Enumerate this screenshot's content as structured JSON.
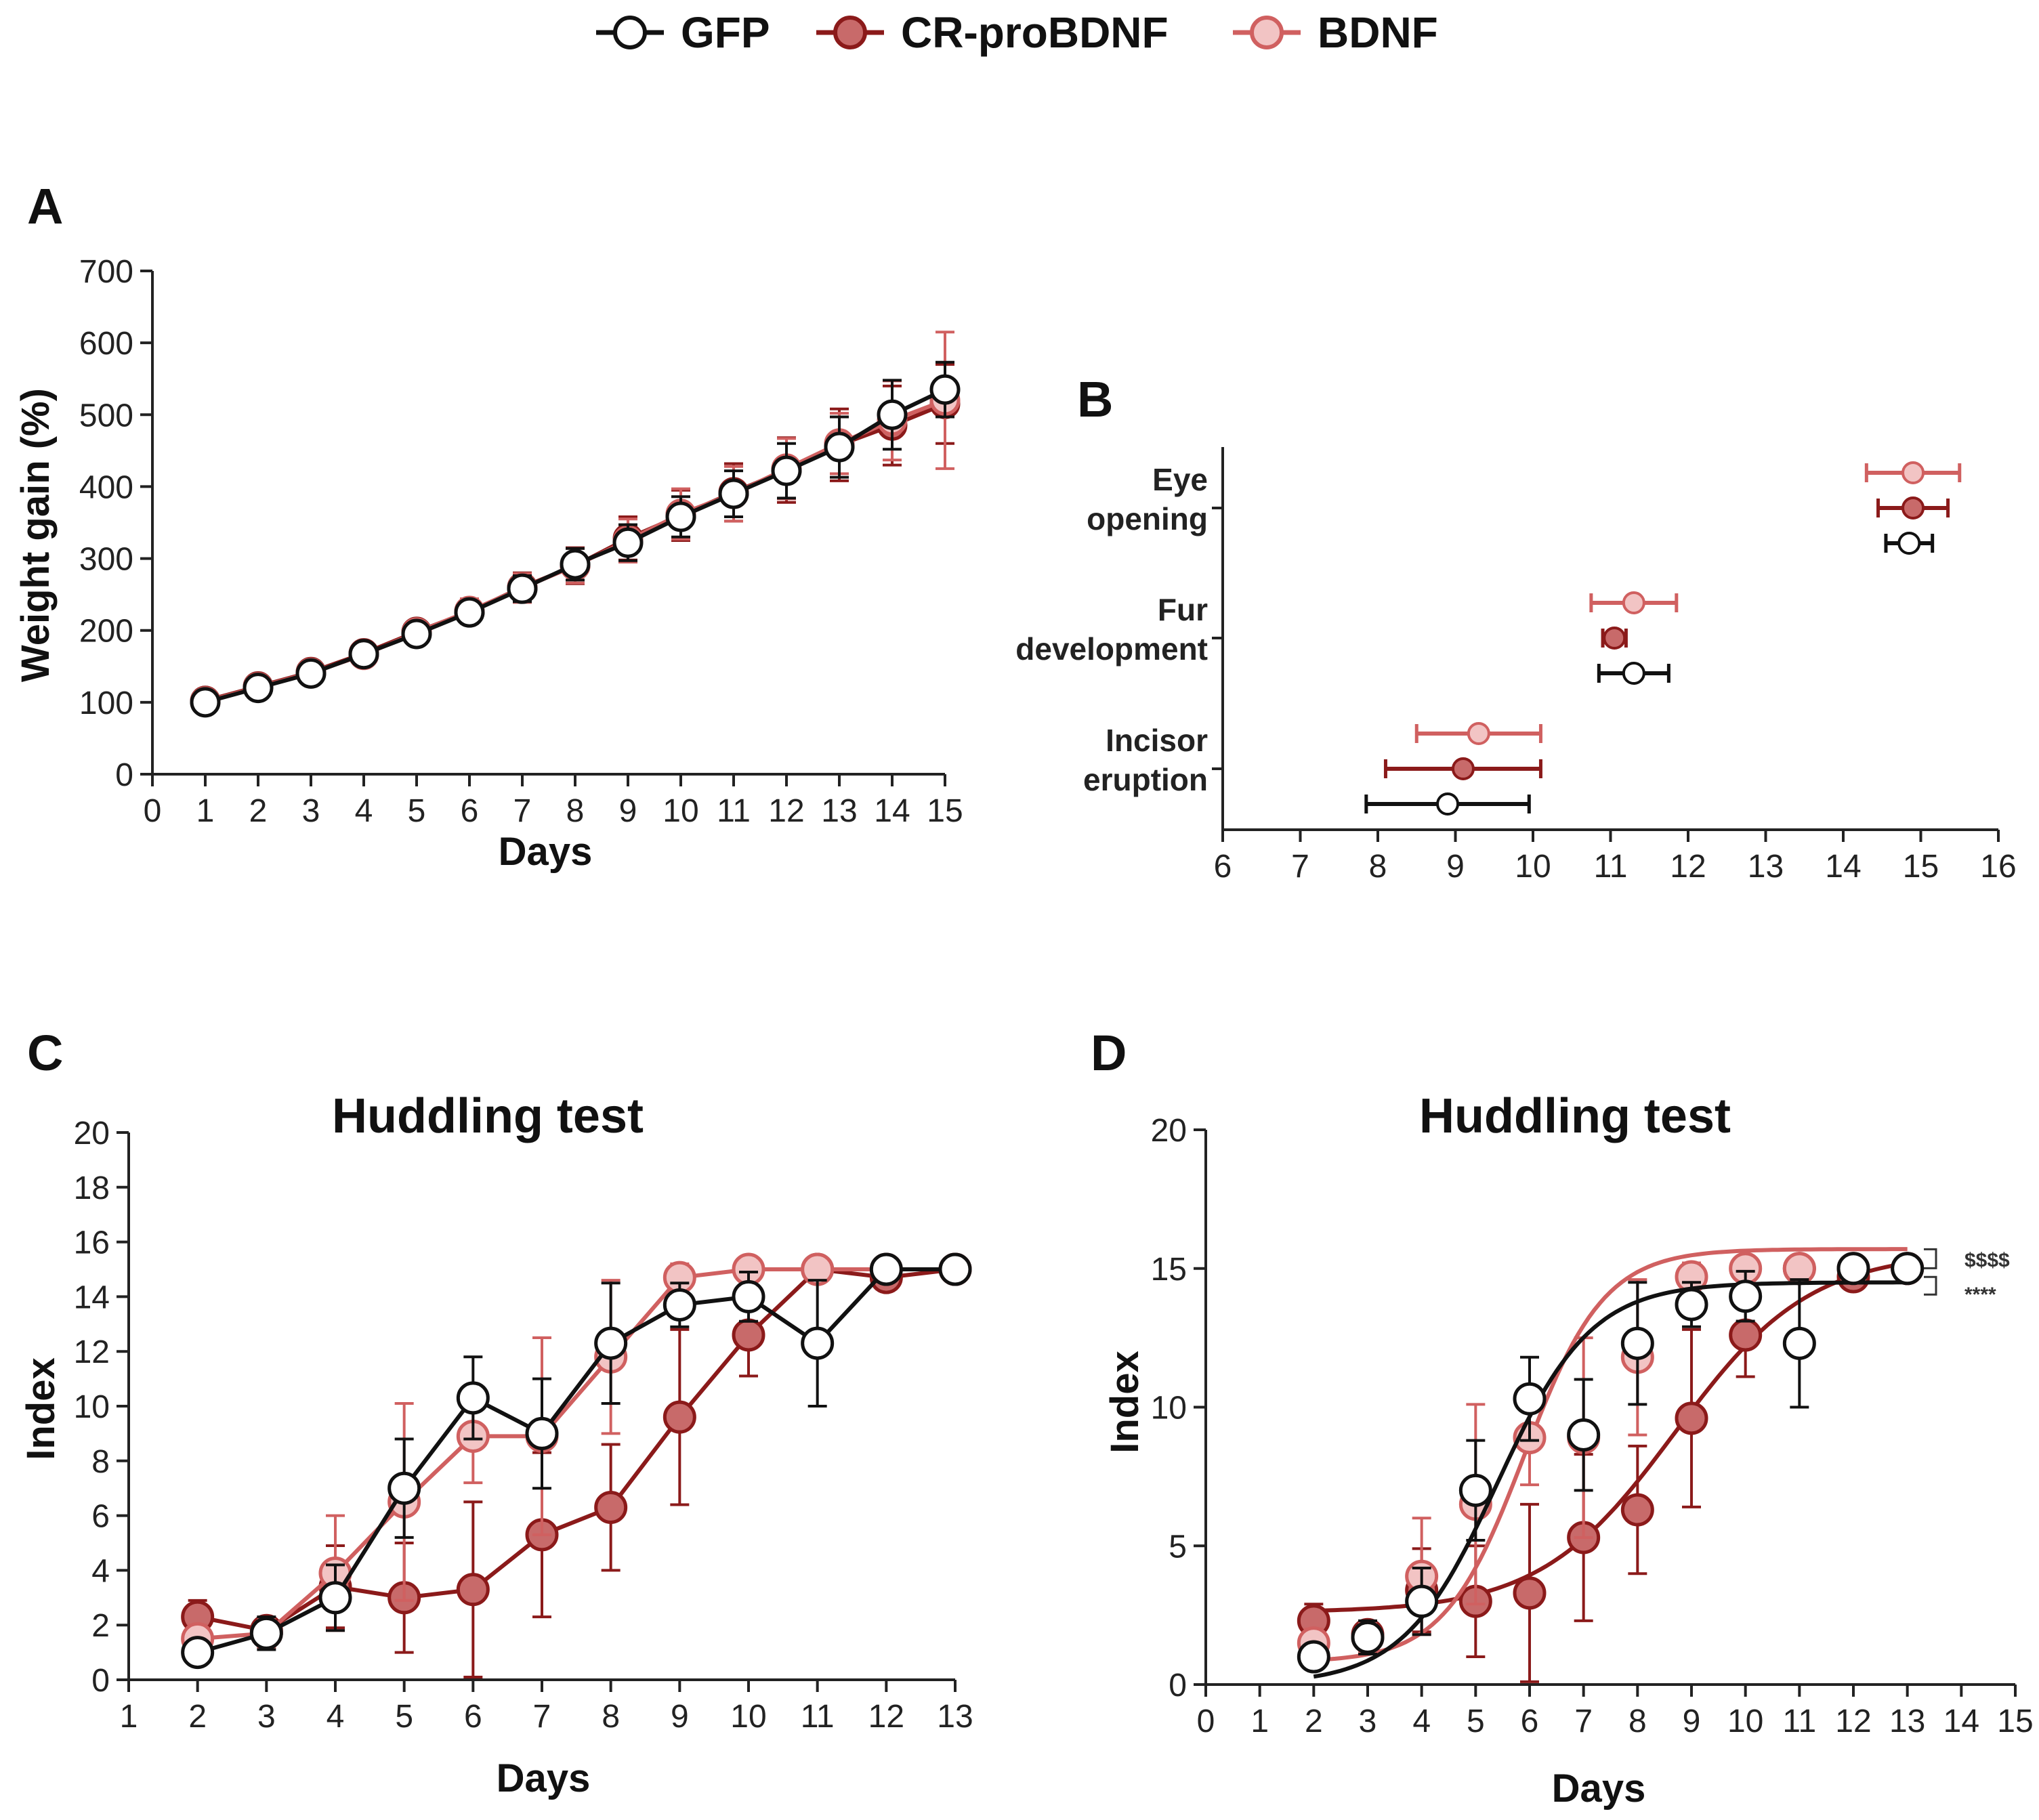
{
  "colors": {
    "GFP": "#111111",
    "CR-proBDNF": "#8b1a1a",
    "BDNF": "#d06060",
    "GFP_fill": "#ffffff",
    "CR-proBDNF_fill": "#c86a6a",
    "BDNF_fill": "#f2c4c4"
  },
  "legend": {
    "items": [
      "GFP",
      "CR-proBDNF",
      "BDNF"
    ]
  },
  "chart_data": [
    {
      "panel": "A",
      "type": "line",
      "title": "",
      "xlabel": "Days",
      "ylabel": "Weight gain (%)",
      "xlim": [
        0,
        15
      ],
      "ylim": [
        0,
        700
      ],
      "xticks": [
        0,
        1,
        2,
        3,
        4,
        5,
        6,
        7,
        8,
        9,
        10,
        11,
        12,
        13,
        14,
        15
      ],
      "yticks": [
        0,
        100,
        200,
        300,
        400,
        500,
        600,
        700
      ],
      "x": [
        1,
        2,
        3,
        4,
        5,
        6,
        7,
        8,
        9,
        10,
        11,
        12,
        13,
        14,
        15
      ],
      "series": [
        {
          "name": "GFP",
          "values": [
            100,
            120,
            140,
            167,
            195,
            225,
            258,
            292,
            322,
            358,
            390,
            422,
            455,
            500,
            535
          ],
          "err": [
            4,
            5,
            7,
            8,
            12,
            15,
            18,
            22,
            25,
            28,
            32,
            38,
            42,
            48,
            38
          ]
        },
        {
          "name": "CR-proBDNF",
          "values": [
            102,
            122,
            142,
            168,
            198,
            226,
            260,
            290,
            328,
            360,
            392,
            423,
            458,
            485,
            515
          ],
          "err": [
            4,
            5,
            8,
            9,
            13,
            16,
            20,
            25,
            30,
            35,
            40,
            45,
            50,
            55,
            55
          ]
        },
        {
          "name": "BDNF",
          "values": [
            101,
            121,
            141,
            166,
            197,
            227,
            259,
            290,
            325,
            362,
            390,
            425,
            460,
            492,
            520
          ],
          "err": [
            4,
            5,
            8,
            9,
            14,
            17,
            20,
            24,
            30,
            35,
            38,
            42,
            42,
            55,
            95
          ]
        }
      ]
    },
    {
      "panel": "B",
      "type": "scatter",
      "title": "",
      "xlabel": "",
      "ylabel": "",
      "xlim": [
        6,
        16
      ],
      "xticks": [
        6,
        7,
        8,
        9,
        10,
        11,
        12,
        13,
        14,
        15,
        16
      ],
      "categories": [
        "Eye opening",
        "Fur development",
        "Incisor eruption"
      ],
      "category_lines": [
        [
          "Eye",
          "opening"
        ],
        [
          "Fur",
          "development"
        ],
        [
          "Incisor",
          "eruption"
        ]
      ],
      "series": [
        {
          "name": "BDNF",
          "values": [
            14.9,
            11.3,
            9.3
          ],
          "err": [
            0.6,
            0.55,
            0.8
          ]
        },
        {
          "name": "CR-proBDNF",
          "values": [
            14.9,
            11.05,
            9.1
          ],
          "err": [
            0.45,
            0.15,
            1.0
          ]
        },
        {
          "name": "GFP",
          "values": [
            14.85,
            11.3,
            8.9
          ],
          "err": [
            0.3,
            0.45,
            1.05
          ]
        }
      ]
    },
    {
      "panel": "C",
      "type": "line",
      "title": "Huddling test",
      "xlabel": "Days",
      "ylabel": "Index",
      "xlim": [
        1,
        13
      ],
      "ylim": [
        0,
        20
      ],
      "xticks": [
        1,
        2,
        3,
        4,
        5,
        6,
        7,
        8,
        9,
        10,
        11,
        12,
        13
      ],
      "yticks": [
        0,
        2,
        4,
        6,
        8,
        10,
        12,
        14,
        16,
        18,
        20
      ],
      "x": [
        2,
        3,
        4,
        5,
        6,
        7,
        8,
        9,
        10,
        11,
        12,
        13
      ],
      "series": [
        {
          "name": "GFP",
          "values": [
            1.0,
            1.7,
            3.0,
            7.0,
            10.3,
            9.0,
            12.3,
            13.7,
            14.0,
            12.3,
            15.0,
            15.0
          ],
          "err": [
            0.3,
            0.6,
            1.2,
            1.8,
            1.5,
            2.0,
            2.2,
            0.8,
            0.9,
            2.3,
            0.3,
            0.2
          ]
        },
        {
          "name": "CR-proBDNF",
          "values": [
            2.3,
            1.8,
            3.4,
            3.0,
            3.3,
            5.3,
            6.3,
            9.6,
            12.6,
            15.0,
            14.7,
            15.0
          ],
          "err": [
            0.6,
            0.4,
            1.5,
            2.0,
            3.2,
            3.0,
            2.3,
            3.2,
            1.5,
            0.2,
            0.4,
            0.2
          ]
        },
        {
          "name": "BDNF",
          "values": [
            1.5,
            1.7,
            3.9,
            6.5,
            8.9,
            8.9,
            11.8,
            14.7,
            15.0,
            15.0,
            15.0,
            15.0
          ],
          "err": [
            0.5,
            0.5,
            2.1,
            3.6,
            1.7,
            3.6,
            2.8,
            0.5,
            0.2,
            0.2,
            0.2,
            0.2
          ]
        }
      ]
    },
    {
      "panel": "D",
      "type": "scatter",
      "title": "Huddling test",
      "xlabel": "Days",
      "ylabel": "Index",
      "xlim": [
        0,
        15
      ],
      "ylim": [
        0,
        20
      ],
      "xticks": [
        0,
        1,
        2,
        3,
        4,
        5,
        6,
        7,
        8,
        9,
        10,
        11,
        12,
        13,
        14,
        15
      ],
      "yticks": [
        0,
        5,
        10,
        15,
        20
      ],
      "x": [
        2,
        3,
        4,
        5,
        6,
        7,
        8,
        9,
        10,
        11,
        12,
        13
      ],
      "series": [
        {
          "name": "GFP",
          "values": [
            1.0,
            1.7,
            3.0,
            7.0,
            10.3,
            9.0,
            12.3,
            13.7,
            14.0,
            12.3,
            15.0,
            15.0
          ],
          "err": [
            0.3,
            0.6,
            1.2,
            1.8,
            1.5,
            2.0,
            2.2,
            0.8,
            0.9,
            2.3,
            0.3,
            0.2
          ],
          "fit": {
            "bottom": 0.0,
            "top": 14.5,
            "x50": 5.4,
            "slope": 1.15
          }
        },
        {
          "name": "CR-proBDNF",
          "values": [
            2.3,
            1.8,
            3.4,
            3.0,
            3.3,
            5.3,
            6.3,
            9.6,
            12.6,
            15.0,
            14.7,
            15.0
          ],
          "err": [
            0.6,
            0.4,
            1.5,
            2.0,
            3.2,
            3.0,
            2.3,
            3.2,
            1.5,
            0.2,
            0.4,
            0.2
          ],
          "fit": {
            "bottom": 2.6,
            "top": 15.6,
            "x50": 8.7,
            "slope": 0.8
          }
        },
        {
          "name": "BDNF",
          "values": [
            1.5,
            1.7,
            3.9,
            6.5,
            8.9,
            8.9,
            11.8,
            14.7,
            15.0,
            15.0,
            15.0,
            15.0
          ],
          "err": [
            0.5,
            0.5,
            2.1,
            3.6,
            1.7,
            3.6,
            2.8,
            0.5,
            0.2,
            0.2,
            0.2,
            0.2
          ],
          "fit": {
            "bottom": 0.8,
            "top": 15.7,
            "x50": 5.9,
            "slope": 1.35
          }
        }
      ],
      "annotations": [
        "$$$$",
        "****"
      ]
    }
  ]
}
